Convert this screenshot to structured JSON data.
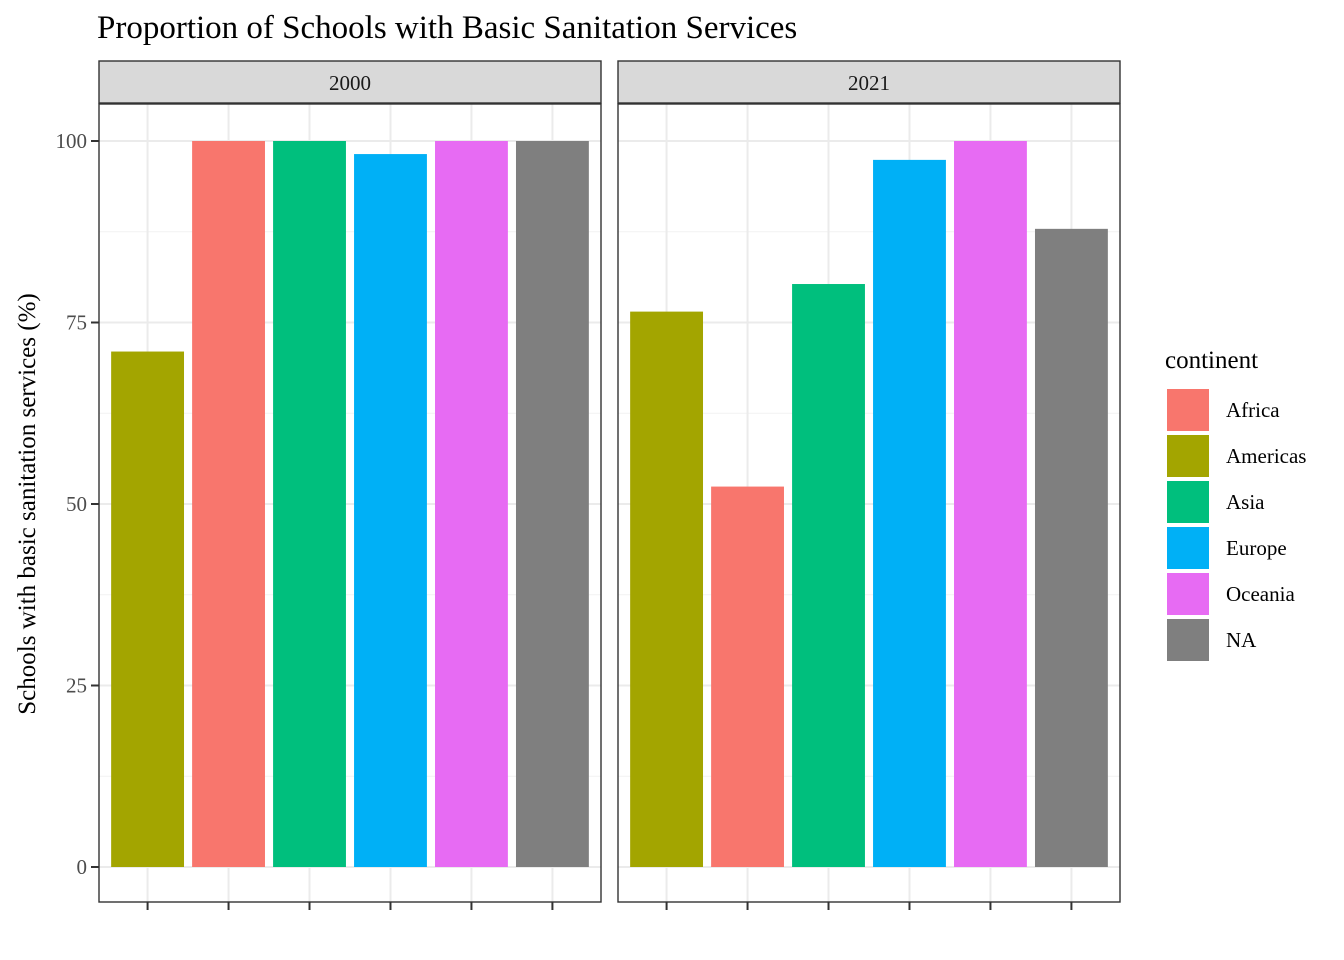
{
  "chart_data": {
    "type": "bar",
    "title": "Proportion of Schools with Basic Sanitation Services",
    "xlabel": "",
    "ylabel": "Schools with basic sanitation services (%)",
    "ylim": [
      -5,
      105
    ],
    "yticks": [
      0,
      25,
      50,
      75,
      100
    ],
    "grid": true,
    "legend": {
      "title": "continent",
      "position": "right",
      "entries": [
        {
          "name": "Africa",
          "color": "#F8766D"
        },
        {
          "name": "Americas",
          "color": "#A3A500"
        },
        {
          "name": "Asia",
          "color": "#00BF7D"
        },
        {
          "name": "Europe",
          "color": "#00B0F6"
        },
        {
          "name": "Oceania",
          "color": "#E76BF3"
        },
        {
          "name": "NA",
          "color": "#7F7F7F"
        }
      ]
    },
    "facets": [
      {
        "label": "2000",
        "bars": [
          {
            "continent": "Americas",
            "value": 71
          },
          {
            "continent": "Africa",
            "value": 100
          },
          {
            "continent": "Asia",
            "value": 100
          },
          {
            "continent": "Europe",
            "value": 98.2
          },
          {
            "continent": "Oceania",
            "value": 100
          },
          {
            "continent": "NA",
            "value": 100
          }
        ]
      },
      {
        "label": "2021",
        "bars": [
          {
            "continent": "Americas",
            "value": 76.5
          },
          {
            "continent": "Africa",
            "value": 52.4
          },
          {
            "continent": "Asia",
            "value": 80.3
          },
          {
            "continent": "Europe",
            "value": 97.4
          },
          {
            "continent": "Oceania",
            "value": 100
          },
          {
            "continent": "NA",
            "value": 87.9
          }
        ]
      }
    ]
  }
}
